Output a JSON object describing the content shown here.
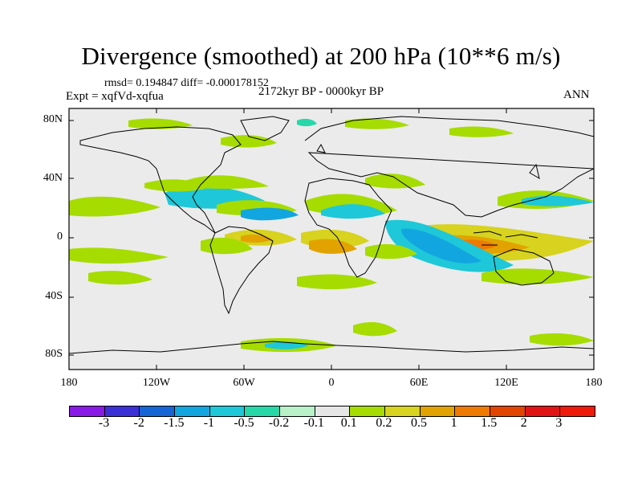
{
  "map": {
    "title": "Divergence (smoothed) at 200 hPa (10**6 m/s)",
    "stats_text": "rmsd= 0.194847 diff= -0.000178152",
    "period": "2172kyr BP - 0000kyr BP",
    "experiment": "Expt = xqfVd-xqfua",
    "season": "ANN",
    "lat_labels": [
      "80N",
      "40N",
      "0",
      "40S",
      "80S"
    ],
    "lon_labels": [
      "180",
      "120W",
      "60W",
      "0",
      "60E",
      "120E",
      "180"
    ]
  },
  "colorbar": {
    "labels": [
      "-3",
      "-2",
      "-1.5",
      "-1",
      "-0.5",
      "-0.2",
      "-0.1",
      "0.1",
      "0.2",
      "0.5",
      "1",
      "1.5",
      "2",
      "3"
    ],
    "colors": [
      "#8a1be6",
      "#3b2fd6",
      "#1565d4",
      "#12a6e0",
      "#1ec8d8",
      "#28d7a8",
      "#b8f0c8",
      "#e6e6e6",
      "#a6dc00",
      "#d7d31e",
      "#e2a300",
      "#ef7a00",
      "#e24500",
      "#e01414",
      "#ee1a0a"
    ]
  },
  "colors": {
    "background": "#ebebeb",
    "land_outline": "#000000"
  }
}
